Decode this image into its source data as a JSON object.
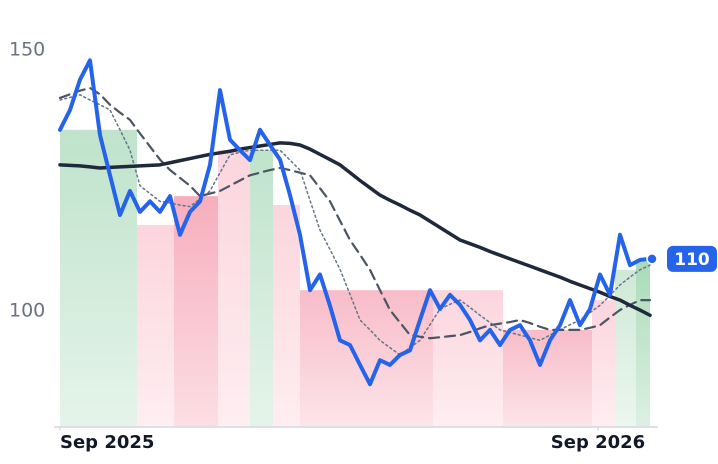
{
  "chart_data": {
    "type": "line",
    "xlim": [
      0,
      59
    ],
    "ylim": [
      78,
      154
    ],
    "yticks": [
      100,
      150
    ],
    "xticks": [
      {
        "value": 0,
        "label": "Sep 2025"
      },
      {
        "value": 53.8,
        "label": "Sep 2026"
      }
    ],
    "grid": false,
    "series": [
      {
        "color": "#2563eb",
        "style": "solid",
        "width": 4,
        "values": [
          134.7,
          138.5,
          144.3,
          148,
          133.7,
          126,
          118.4,
          123,
          119,
          121,
          119,
          122,
          114.6,
          119,
          121,
          128,
          142.3,
          132.8,
          130.8,
          128.9,
          134.7,
          131.8,
          129,
          122.2,
          114.6,
          104,
          107,
          101,
          94.4,
          93.5,
          89.7,
          86,
          90.6,
          89.7,
          91.6,
          92.5,
          98.3,
          104,
          100.4,
          103.1,
          101.2,
          98.3,
          94.4,
          96.4,
          93.5,
          96.4,
          97.3,
          94.4,
          89.7,
          94.4,
          97.3,
          102.1,
          97.3,
          100.4,
          107,
          103.1,
          114.6,
          108.8,
          109.8,
          110
        ]
      },
      {
        "color": "#1e293b",
        "style": "solid",
        "width": 3.5,
        "values": [
          128,
          127.9,
          127.8,
          127.6,
          127.4,
          127.5,
          127.6,
          127.7,
          127.8,
          127.9,
          128,
          128.4,
          128.8,
          129.2,
          129.6,
          130,
          130.3,
          130.6,
          131,
          131.3,
          131.6,
          131.9,
          132.2,
          132.1,
          131.8,
          131,
          130,
          129,
          128,
          126.5,
          125,
          123.6,
          122.2,
          121.2,
          120.3,
          119.3,
          118.4,
          117.2,
          116,
          114.8,
          113.6,
          112.9,
          112.2,
          111.4,
          110.7,
          110,
          109.3,
          108.6,
          107.9,
          107.2,
          106.5,
          105.7,
          105,
          104.3,
          103.6,
          102.8,
          102.1,
          101.1,
          100.2,
          99.2
        ]
      },
      {
        "color": "#4b5563",
        "style": "dashed",
        "width": 2.2,
        "values": [
          140.8,
          141.5,
          142.2,
          142.7,
          141.5,
          139.5,
          138,
          136.6,
          134,
          131.5,
          129,
          127,
          125.5,
          124,
          122,
          122.5,
          123,
          124,
          125,
          126,
          126.5,
          127,
          127.4,
          127,
          126.5,
          126,
          123.5,
          121,
          117.3,
          113.6,
          110.8,
          107.9,
          104,
          100.2,
          97.8,
          95.4,
          95.1,
          94.8,
          95,
          95.2,
          95.4,
          96,
          96.7,
          97.3,
          97.6,
          97.9,
          98.3,
          97.7,
          97,
          96.4,
          96.4,
          96.4,
          96.4,
          96.8,
          97.3,
          98.8,
          100.2,
          101.2,
          102.1,
          102.1
        ]
      },
      {
        "color": "#64748b",
        "style": "dotted",
        "width": 1.5,
        "values": [
          140.4,
          140.9,
          141.4,
          140.4,
          139.5,
          138.5,
          134.7,
          130.8,
          124,
          122.5,
          121,
          120.7,
          120.3,
          120,
          121.5,
          123,
          126.5,
          129.9,
          130.4,
          130.8,
          130.8,
          130.8,
          130.8,
          128.9,
          127,
          121.2,
          115.5,
          111.8,
          108,
          103.2,
          98.3,
          96.4,
          94.4,
          93,
          91.6,
          93,
          94.4,
          97.4,
          100.4,
          101.3,
          102.1,
          100.7,
          99.2,
          97.8,
          96.4,
          95.9,
          95.4,
          94.9,
          94.4,
          95.4,
          96.4,
          97.4,
          98.3,
          99.7,
          101.1,
          103,
          105,
          106.5,
          107.9,
          108.8
        ]
      }
    ],
    "bands": [
      {
        "start": 0,
        "end": 7.7,
        "top": 134.7,
        "color": "#bfe3cb"
      },
      {
        "start": 7.7,
        "end": 11.4,
        "top": 116.5,
        "color": "#fcd5dd"
      },
      {
        "start": 11.4,
        "end": 15.8,
        "top": 122,
        "color": "#f7aebc"
      },
      {
        "start": 15.8,
        "end": 19,
        "top": 130.8,
        "color": "#fcd5dd"
      },
      {
        "start": 19,
        "end": 21.3,
        "top": 130.8,
        "color": "#bfe3cb"
      },
      {
        "start": 21.3,
        "end": 24,
        "top": 120.3,
        "color": "#fcd5dd"
      },
      {
        "start": 24,
        "end": 37.3,
        "top": 104,
        "color": "#f8bcc8"
      },
      {
        "start": 37.3,
        "end": 44.3,
        "top": 104,
        "color": "#fcd5dd"
      },
      {
        "start": 44.3,
        "end": 53.2,
        "top": 96.4,
        "color": "#f8bcc8"
      },
      {
        "start": 53.2,
        "end": 55.5,
        "top": 102.1,
        "color": "#fcd5dd"
      },
      {
        "start": 55.5,
        "end": 57.6,
        "top": 107.9,
        "color": "#cfe9d6"
      },
      {
        "start": 57.6,
        "end": 59,
        "top": 109.8,
        "color": "#a9dbb8"
      }
    ]
  }
}
